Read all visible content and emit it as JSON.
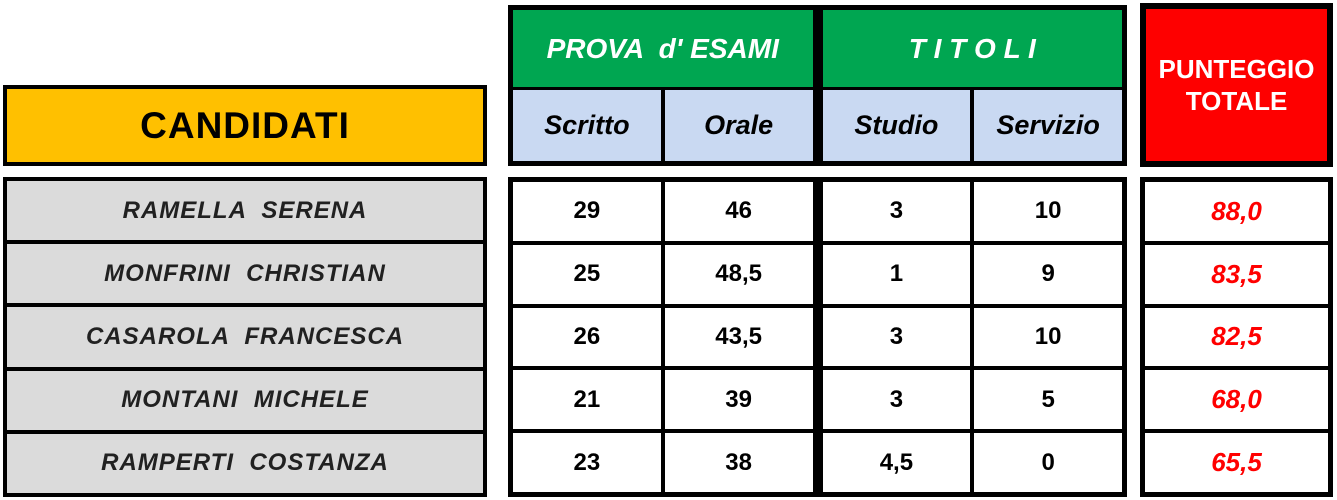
{
  "table": {
    "headers": {
      "candidati": "CANDIDATI",
      "prova_esami": "PROVA  d' ESAMI",
      "titoli": "T I T O L I",
      "sub": [
        "Scritto",
        "Orale",
        "Studio",
        "Servizio"
      ],
      "punteggio_line1": "PUNTEGGIO",
      "punteggio_line2": "TOTALE"
    },
    "rows": [
      {
        "name": "RAMELLA  SERENA",
        "scritto": "29",
        "orale": "46",
        "studio": "3",
        "servizio": "10",
        "totale": "88,0"
      },
      {
        "name": "MONFRINI  CHRISTIAN",
        "scritto": "25",
        "orale": "48,5",
        "studio": "1",
        "servizio": "9",
        "totale": "83,5"
      },
      {
        "name": "CASAROLA  FRANCESCA",
        "scritto": "26",
        "orale": "43,5",
        "studio": "3",
        "servizio": "10",
        "totale": "82,5"
      },
      {
        "name": "MONTANI  MICHELE",
        "scritto": "21",
        "orale": "39",
        "studio": "3",
        "servizio": "5",
        "totale": "68,0"
      },
      {
        "name": "RAMPERTI  COSTANZA",
        "scritto": "23",
        "orale": "38",
        "studio": "4,5",
        "servizio": "0",
        "totale": "65,5"
      }
    ],
    "colors": {
      "candidati_bg": "#FFC000",
      "section_header_bg": "#00A651",
      "subheader_bg": "#C9D9F2",
      "punteggio_bg": "#FE0000",
      "name_row_bg": "#DBDBDB",
      "total_text": "#FF0000",
      "border": "#000000"
    }
  }
}
